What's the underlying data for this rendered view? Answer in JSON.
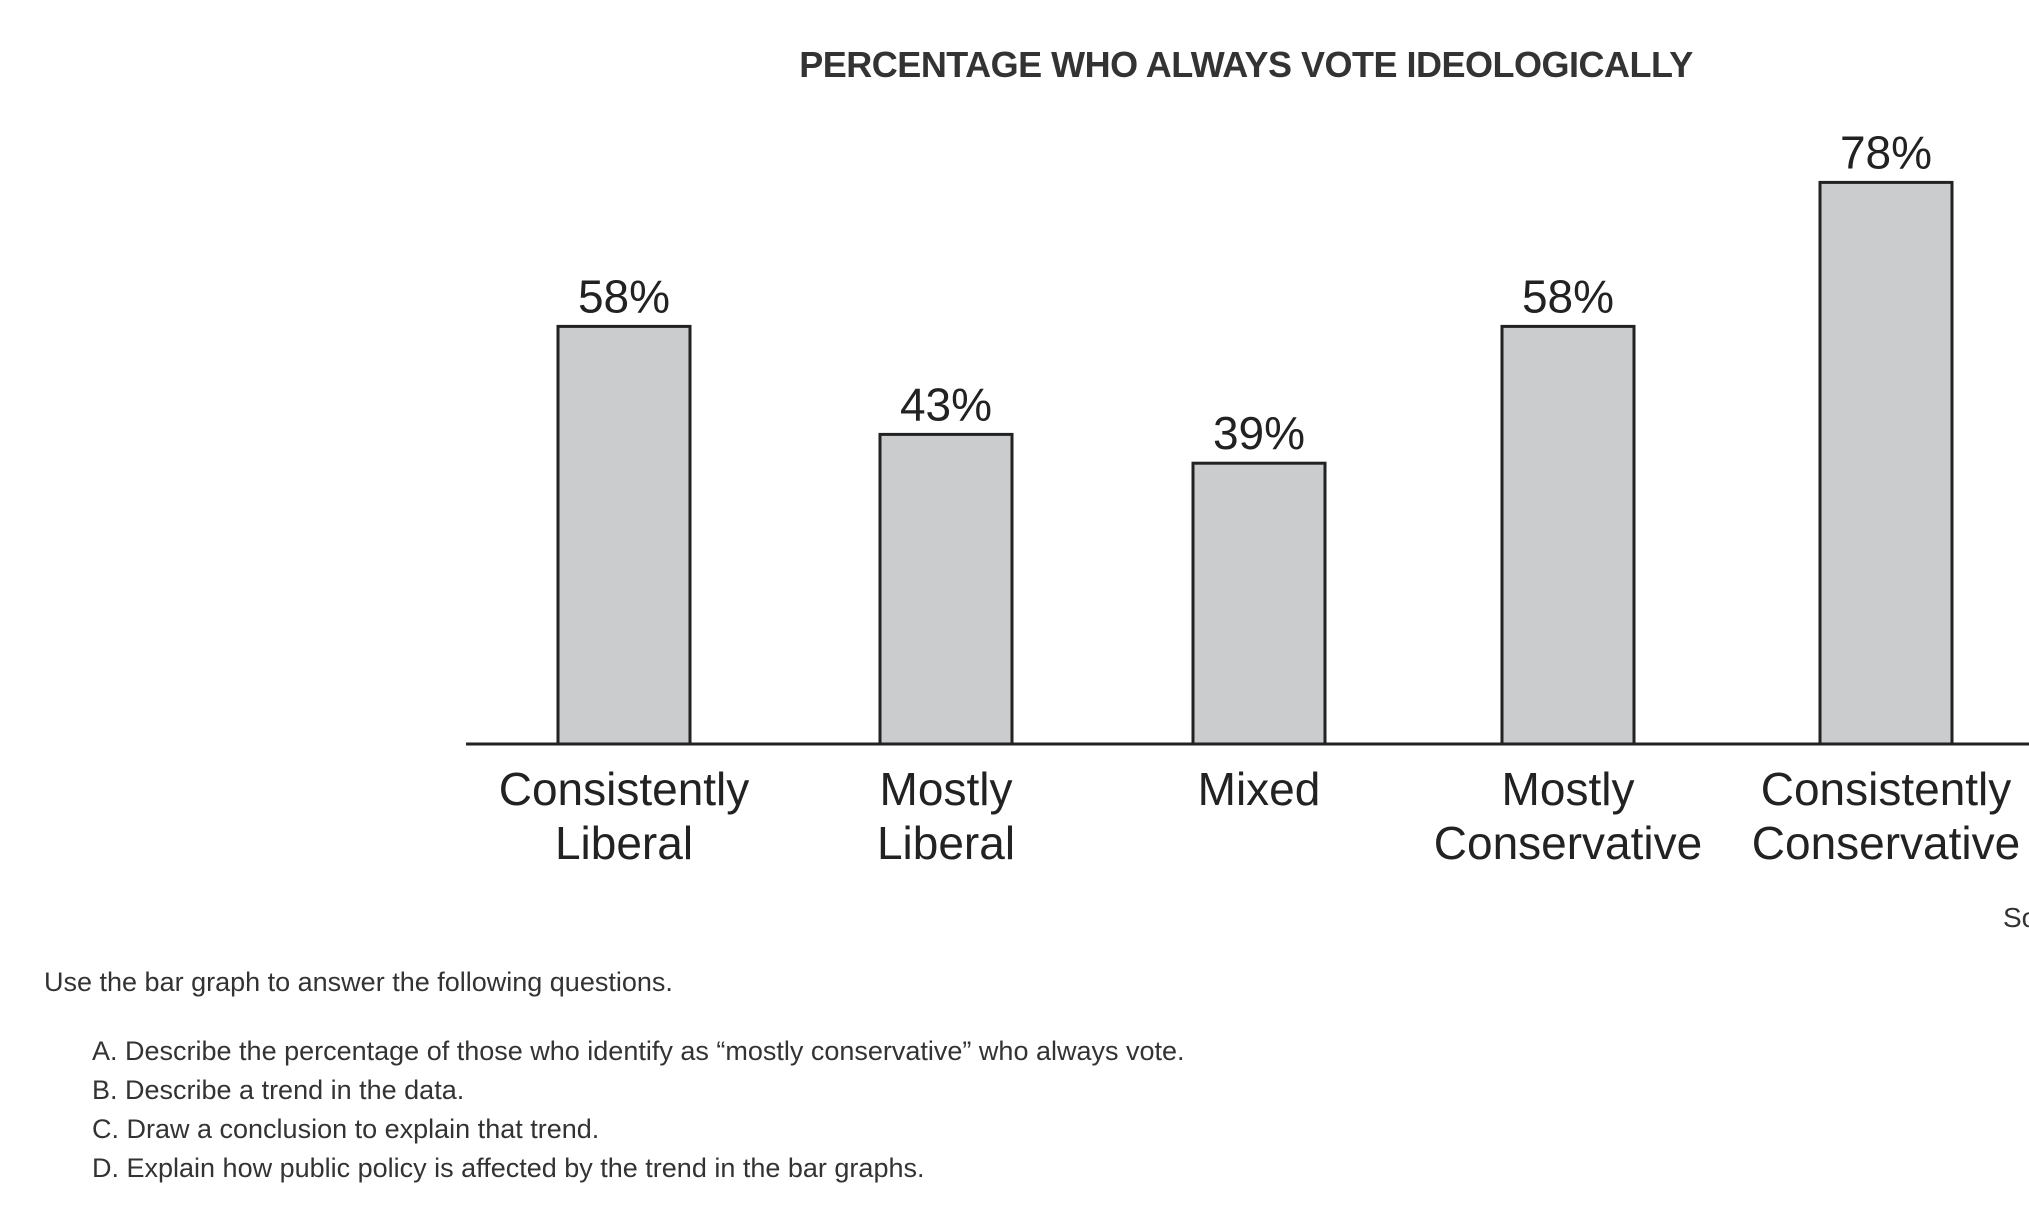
{
  "chart_data": {
    "type": "bar",
    "title": "PERCENTAGE WHO ALWAYS VOTE IDEOLOGICALLY",
    "categories": [
      [
        "Consistently",
        "Liberal"
      ],
      [
        "Mostly",
        "Liberal"
      ],
      [
        "Mixed"
      ],
      [
        "Mostly",
        "Conservative"
      ],
      [
        "Consistently",
        "Conservative"
      ]
    ],
    "values": [
      58,
      43,
      39,
      58,
      78
    ],
    "data_labels": [
      "58%",
      "43%",
      "39%",
      "58%",
      "78%"
    ],
    "xlabel": "",
    "ylabel": "",
    "ylim": [
      0,
      100
    ],
    "grid": false,
    "bar_color": "#cbcccd",
    "bar_edge_color": "#222222",
    "source_label": "So"
  },
  "questions": {
    "intro": "Use the bar graph to answer the following questions.",
    "items": [
      "A. Describe the percentage of those who identify as “mostly conservative” who always vote.",
      "B. Describe a trend in the data.",
      "C. Draw a conclusion to explain that trend.",
      "D. Explain how public policy is affected by the trend in the bar graphs."
    ]
  }
}
